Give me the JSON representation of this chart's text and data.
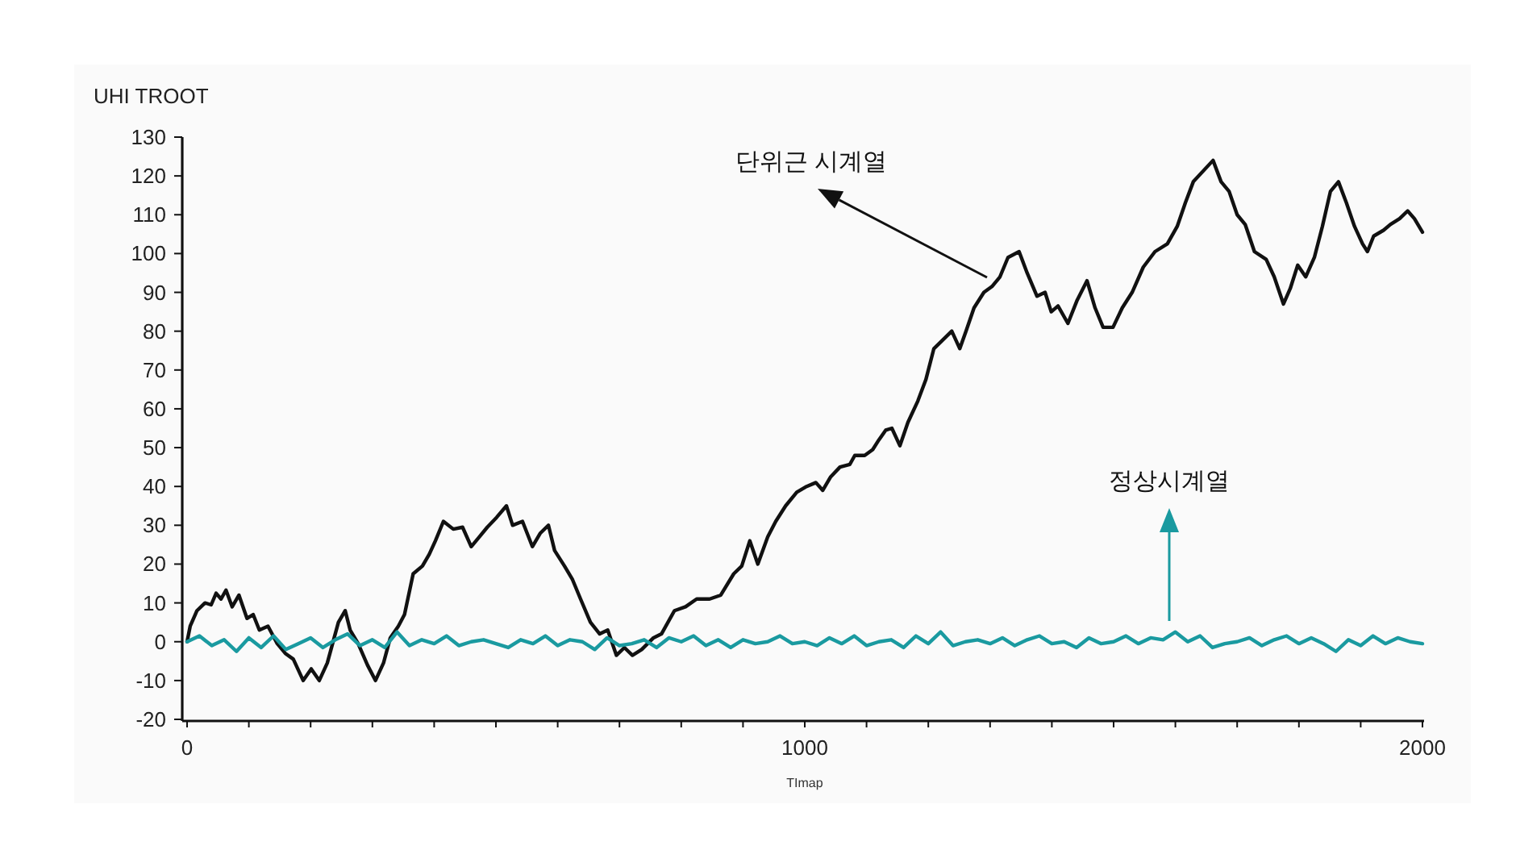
{
  "chart_data": {
    "type": "line",
    "xlabel": "TImap",
    "ylabel": "UHI TROOT",
    "xlim": [
      0,
      2000
    ],
    "ylim": [
      -20,
      130
    ],
    "xticks": [
      0,
      {
        "value": 100,
        "label": null
      },
      {
        "value": 200,
        "label": null
      },
      {
        "value": 300,
        "label": null
      },
      {
        "value": 400,
        "label": null
      },
      {
        "value": 500,
        "label": null
      },
      {
        "value": 600,
        "label": null
      },
      {
        "value": 700,
        "label": null
      },
      {
        "value": 800,
        "label": null
      },
      {
        "value": 900,
        "label": null
      },
      1000,
      {
        "value": 1100,
        "label": null
      },
      {
        "value": 1200,
        "label": null
      },
      {
        "value": 1300,
        "label": null
      },
      {
        "value": 1400,
        "label": null
      },
      {
        "value": 1500,
        "label": null
      },
      {
        "value": 1600,
        "label": null
      },
      {
        "value": 1700,
        "label": null
      },
      {
        "value": 1800,
        "label": null
      },
      {
        "value": 1900,
        "label": null
      },
      2000
    ],
    "yticks": [
      -20,
      -10,
      0,
      10,
      20,
      30,
      40,
      50,
      60,
      70,
      80,
      90,
      100,
      110,
      120,
      130
    ],
    "grid": false,
    "marker": "none",
    "line_style": "solid",
    "series": [
      {
        "color": "#111111",
        "x": [
          0,
          5,
          16,
          29,
          39,
          47,
          55,
          63,
          73,
          84,
          97,
          107,
          117,
          131,
          146,
          159,
          172,
          188,
          201,
          214,
          227,
          245,
          256,
          264,
          277,
          292,
          305,
          318,
          329,
          342,
          352,
          366,
          381,
          392,
          402,
          415,
          431,
          446,
          460,
          473,
          486,
          501,
          517,
          527,
          543,
          559,
          572,
          585,
          595,
          611,
          624,
          637,
          653,
          668,
          681,
          695,
          708,
          721,
          736,
          755,
          768,
          789,
          807,
          825,
          846,
          864,
          885,
          898,
          911,
          924,
          940,
          953,
          969,
          987,
          1003,
          1018,
          1029,
          1042,
          1057,
          1073,
          1081,
          1097,
          1110,
          1120,
          1131,
          1141,
          1154,
          1167,
          1183,
          1196,
          1209,
          1222,
          1238,
          1251,
          1261,
          1274,
          1290,
          1303,
          1316,
          1329,
          1347,
          1360,
          1376,
          1389,
          1399,
          1410,
          1426,
          1441,
          1457,
          1470,
          1483,
          1499,
          1514,
          1530,
          1548,
          1567,
          1587,
          1603,
          1616,
          1629,
          1661,
          1674,
          1687,
          1700,
          1713,
          1728,
          1747,
          1760,
          1775,
          1786,
          1798,
          1811,
          1825,
          1838,
          1851,
          1864,
          1877,
          1890,
          1903,
          1911,
          1921,
          1937,
          1948,
          1963,
          1976,
          1987,
          2000
        ],
        "values": [
          0,
          4,
          8,
          10,
          9.5,
          12.5,
          11,
          13.3,
          9,
          12,
          6,
          7,
          3,
          4,
          -0.5,
          -3,
          -4.5,
          -10,
          -7,
          -10,
          -5.5,
          5,
          8,
          3,
          -0.5,
          -6,
          -10,
          -5.5,
          1,
          4,
          7,
          17.5,
          19.5,
          22.5,
          26,
          31,
          29,
          29.5,
          24.5,
          27,
          29.5,
          32,
          35,
          30,
          31,
          24.5,
          28,
          30,
          23.5,
          19.5,
          16,
          11,
          5,
          2,
          3,
          -3.5,
          -1.5,
          -3.5,
          -2,
          1,
          2,
          8,
          9,
          11,
          11,
          12,
          17.5,
          19.5,
          26,
          20,
          27,
          31,
          35,
          38.5,
          40,
          41,
          39,
          42.5,
          45,
          45.7,
          48,
          48,
          49.5,
          52,
          54.5,
          55,
          50.5,
          56.5,
          62,
          67.5,
          75.5,
          77.5,
          80,
          75.5,
          80,
          86,
          90,
          91.5,
          94,
          99,
          100.5,
          95,
          89,
          90,
          85,
          86.5,
          82,
          88,
          93,
          86,
          81,
          81,
          86,
          90,
          96.5,
          100.5,
          102.5,
          107,
          113,
          118.5,
          124,
          118.5,
          116,
          110,
          107.5,
          100.5,
          98.5,
          94,
          87,
          91,
          97,
          94,
          99,
          107,
          116,
          118.5,
          113,
          107,
          102.5,
          100.5,
          104.5,
          106,
          107.5,
          109,
          111,
          109,
          105.5
        ]
      },
      {
        "color": "#1a9aa0",
        "x": [
          0,
          20,
          40,
          60,
          80,
          100,
          120,
          140,
          160,
          180,
          200,
          220,
          240,
          260,
          280,
          300,
          320,
          340,
          360,
          380,
          400,
          420,
          440,
          460,
          480,
          500,
          520,
          540,
          560,
          580,
          600,
          620,
          640,
          660,
          680,
          700,
          720,
          740,
          760,
          780,
          800,
          820,
          840,
          860,
          880,
          900,
          920,
          940,
          960,
          980,
          1000,
          1020,
          1040,
          1060,
          1080,
          1100,
          1120,
          1140,
          1160,
          1180,
          1200,
          1220,
          1240,
          1260,
          1280,
          1300,
          1320,
          1340,
          1360,
          1380,
          1400,
          1420,
          1440,
          1460,
          1480,
          1500,
          1520,
          1540,
          1560,
          1580,
          1600,
          1620,
          1640,
          1660,
          1680,
          1700,
          1720,
          1740,
          1760,
          1780,
          1800,
          1820,
          1840,
          1860,
          1880,
          1900,
          1920,
          1940,
          1960,
          1980,
          2000
        ],
        "values": [
          0,
          1.5,
          -1,
          0.5,
          -2.5,
          1,
          -1.5,
          1.5,
          -2,
          -0.5,
          1,
          -1.5,
          0.5,
          2,
          -1,
          0.5,
          -1.5,
          2.5,
          -1,
          0.5,
          -0.5,
          1.5,
          -1,
          0,
          0.5,
          -0.5,
          -1.5,
          0.5,
          -0.5,
          1.5,
          -1,
          0.5,
          0,
          -2,
          1,
          -1,
          -0.5,
          0.5,
          -1.5,
          1,
          0,
          1.5,
          -1,
          0.5,
          -1.5,
          0.5,
          -0.5,
          0,
          1.5,
          -0.5,
          0,
          -1,
          1,
          -0.5,
          1.5,
          -1,
          0,
          0.5,
          -1.5,
          1.5,
          -0.5,
          2.5,
          -1,
          0,
          0.5,
          -0.5,
          1,
          -1,
          0.5,
          1.5,
          -0.5,
          0,
          -1.5,
          1,
          -0.5,
          0,
          1.5,
          -0.5,
          1,
          0.5,
          2.5,
          0,
          1.5,
          -1.5,
          -0.5,
          0,
          1,
          -1,
          0.5,
          1.5,
          -0.5,
          1,
          -0.5,
          -2.5,
          0.5,
          -1,
          1.5,
          -0.5,
          1,
          0,
          -0.5
        ]
      }
    ],
    "annotations": [
      "단위근 시계열",
      "정상시계열"
    ]
  }
}
